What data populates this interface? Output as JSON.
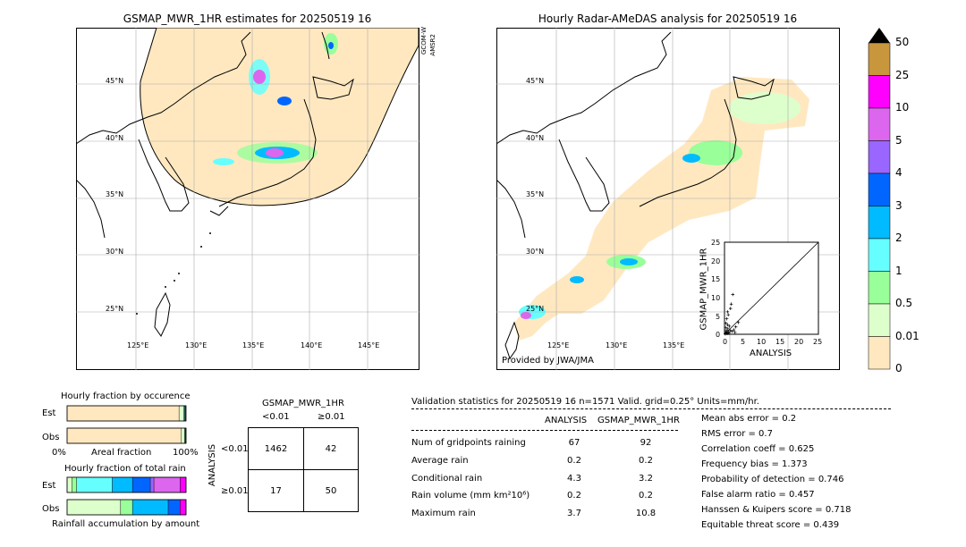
{
  "left_map": {
    "title": "GSMAP_MWR_1HR estimates for 20250519 16",
    "side_label_1": "GCOM-W",
    "side_label_2": "AMSR2",
    "lat_labels": [
      "45°N",
      "40°N",
      "35°N",
      "30°N",
      "25°N"
    ],
    "lon_labels": [
      "125°E",
      "130°E",
      "135°E",
      "140°E",
      "145°E"
    ]
  },
  "right_map": {
    "title": "Hourly Radar-AMeDAS analysis for 20250519 16",
    "lat_labels": [
      "45°N",
      "40°N",
      "35°N",
      "30°N",
      "25°N"
    ],
    "lon_labels": [
      "125°E",
      "130°E",
      "135°E"
    ],
    "credit": "Provided by JWA/JMA"
  },
  "colorbar": {
    "labels": [
      "50",
      "25",
      "10",
      "5",
      "4",
      "3",
      "2",
      "1",
      "0.5",
      "0.01",
      "0"
    ],
    "colors": [
      "#c8963c",
      "#ff00ff",
      "#dd66ee",
      "#9966ff",
      "#0066ff",
      "#00bbff",
      "#66ffff",
      "#99ff99",
      "#ddffcc",
      "#ffe8c0"
    ]
  },
  "scatter": {
    "ylabel": "GSMAP_MWR_1HR",
    "xlabel": "ANALYSIS",
    "ticks": [
      "0",
      "5",
      "10",
      "15",
      "20",
      "25"
    ]
  },
  "occurrence": {
    "title": "Hourly fraction by occurence",
    "row_labels": [
      "Est",
      "Obs"
    ],
    "axis_left": "0%",
    "axis_mid": "Areal fraction",
    "axis_right": "100%"
  },
  "total_rain": {
    "title": "Hourly fraction of total rain",
    "row_labels": [
      "Est",
      "Obs"
    ],
    "footer": "Rainfall accumulation by amount"
  },
  "contingency": {
    "title": "GSMAP_MWR_1HR",
    "col_lt": "<0.01",
    "col_ge": "≥0.01",
    "row_lt": "<0.01",
    "row_ge": "≥0.01",
    "side": "ANALYSIS",
    "cells": [
      "1462",
      "42",
      "17",
      "50"
    ]
  },
  "validation": {
    "header": "Validation statistics for 20250519 16  n=1571 Valid. grid=0.25° Units=mm/hr.",
    "col_analysis": "ANALYSIS",
    "col_gsmap": "GSMAP_MWR_1HR",
    "rows": [
      {
        "label": "Num of gridpoints raining",
        "analysis": "67",
        "gsmap": "92"
      },
      {
        "label": "Average rain",
        "analysis": "0.2",
        "gsmap": "0.2"
      },
      {
        "label": "Conditional rain",
        "analysis": "4.3",
        "gsmap": "3.2"
      },
      {
        "label": "Rain volume (mm km²10⁶)",
        "analysis": "0.2",
        "gsmap": "0.2"
      },
      {
        "label": "Maximum rain",
        "analysis": "3.7",
        "gsmap": "10.8"
      }
    ],
    "scores": [
      "Mean abs error =    0.2",
      "RMS error =    0.7",
      "Correlation coeff =  0.625",
      "Frequency bias =  1.373",
      "Probability of detection =  0.746",
      "False alarm ratio =  0.457",
      "Hanssen & Kuipers score =  0.718",
      "Equitable threat score =  0.439"
    ]
  },
  "chart_data": [
    {
      "type": "bar",
      "title": "Hourly fraction by occurence",
      "categories": [
        "Est",
        "Obs"
      ],
      "series": [
        {
          "color": "#ffe8c0",
          "values": [
            0.941,
            0.957
          ]
        },
        {
          "color": "#ddffcc",
          "values": [
            0.04,
            0.03
          ]
        },
        {
          "color": "#99ff99",
          "values": [
            0.006,
            0.006
          ]
        },
        {
          "color": "#66ffff",
          "values": [
            0.006,
            0.004
          ]
        },
        {
          "color": "#00bbff",
          "values": [
            0.005,
            0.003
          ]
        }
      ],
      "xlabel": "Areal fraction"
    },
    {
      "type": "bar",
      "title": "Hourly fraction of total rain",
      "categories": [
        "Est",
        "Obs"
      ],
      "series": [
        {
          "color": "#ddffcc",
          "values": [
            0.04,
            0.45
          ]
        },
        {
          "color": "#99ff99",
          "values": [
            0.04,
            0.1
          ]
        },
        {
          "color": "#66ffff",
          "values": [
            0.3,
            0.0
          ]
        },
        {
          "color": "#00bbff",
          "values": [
            0.17,
            0.3
          ]
        },
        {
          "color": "#0066ff",
          "values": [
            0.15,
            0.1
          ]
        },
        {
          "color": "#9966ff",
          "values": [
            0.03,
            0.0
          ]
        },
        {
          "color": "#dd66ee",
          "values": [
            0.22,
            0.0
          ]
        },
        {
          "color": "#ff00ff",
          "values": [
            0.05,
            0.05
          ]
        }
      ],
      "xlabel": "Rainfall accumulation by amount"
    },
    {
      "type": "scatter",
      "xlabel": "ANALYSIS",
      "ylabel": "GSMAP_MWR_1HR",
      "xlim": [
        0,
        25
      ],
      "ylim": [
        0,
        25
      ],
      "points": [
        [
          0.2,
          0.1
        ],
        [
          0.3,
          0.5
        ],
        [
          0.5,
          1.0
        ],
        [
          0.7,
          0.2
        ],
        [
          0.9,
          1.5
        ],
        [
          1.1,
          0.6
        ],
        [
          1.3,
          2.2
        ],
        [
          0.4,
          3.0
        ],
        [
          0.6,
          4.2
        ],
        [
          1.0,
          5.3
        ],
        [
          0.8,
          6.1
        ],
        [
          1.6,
          7.0
        ],
        [
          1.8,
          8.2
        ],
        [
          2.2,
          10.8
        ],
        [
          1.5,
          1.0
        ],
        [
          2.0,
          0.8
        ],
        [
          2.5,
          1.2
        ],
        [
          3.0,
          2.0
        ],
        [
          3.7,
          3.2
        ],
        [
          1.2,
          0.3
        ],
        [
          0.5,
          0.4
        ],
        [
          0.8,
          2.6
        ],
        [
          2.8,
          0.5
        ],
        [
          0.3,
          1.8
        ]
      ]
    }
  ]
}
